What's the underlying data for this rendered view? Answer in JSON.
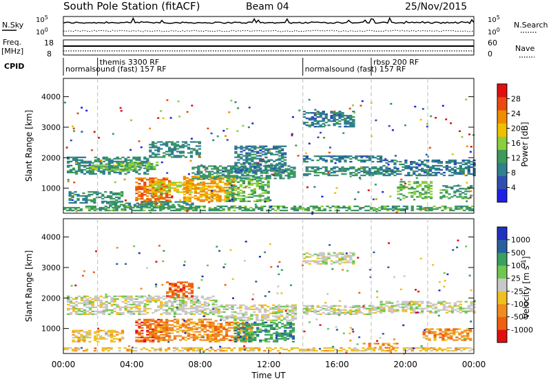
{
  "header": {
    "title": "South Pole Station (fitACF)",
    "beam": "Beam 04",
    "date": "25/Nov/2015"
  },
  "summary": {
    "nsky_label": "N.Sky",
    "nsky_top": "10^5",
    "nsky_bottom": "10^0",
    "nsearch_top": "10^5",
    "nsearch_bottom": "10^0",
    "nsearch_label": "N.Search",
    "freq_label_1": "Freq.",
    "freq_label_2": "[MHz]",
    "freq_top": "18",
    "freq_bottom": "8",
    "nave_top": "60",
    "nave_bottom": "0",
    "nave_label": "Nave",
    "cpid_label": "CPID",
    "cpid_entries": [
      {
        "text": "themis 3300 RF",
        "start_hour": 2.0
      },
      {
        "text": "normalsound (fast) 157 RF",
        "start_hour": 0.0
      },
      {
        "text": "normalsound (fast) 157 RF",
        "start_hour": 14.0
      },
      {
        "text": "rbsp 200 RF",
        "start_hour": 18.0
      }
    ]
  },
  "colors": {
    "power_scale": [
      "#1f1fe6",
      "#2f4fb0",
      "#2f7f8f",
      "#3c9a5a",
      "#8ccf3c",
      "#f0c000",
      "#f08c00",
      "#e84a10",
      "#e01010"
    ],
    "velocity_scale": [
      "#2030c0",
      "#2860a0",
      "#38a060",
      "#70c850",
      "#c8c8c8",
      "#f0c020",
      "#f08c20",
      "#f06010",
      "#e01010"
    ]
  },
  "chart_data": [
    {
      "type": "heatmap",
      "panel": "power",
      "ylabel": "Slant Range [km]",
      "yticks": [
        "4000",
        "3000",
        "2000",
        "1000"
      ],
      "ylim": [
        180,
        4600
      ],
      "xlim": [
        0,
        24
      ],
      "colorbar_label": "Power [dB]",
      "colorbar_ticks": [
        "28",
        "24",
        "20",
        "16",
        "12",
        "8",
        "4"
      ],
      "colorbar_range": [
        0,
        32
      ],
      "regions": [
        {
          "x": [
            0.2,
            5.0
          ],
          "y": [
            1450,
            2000
          ],
          "value": 9
        },
        {
          "x": [
            1.5,
            3.8
          ],
          "y": [
            1550,
            1750
          ],
          "value": 16
        },
        {
          "x": [
            3.0,
            5.5
          ],
          "y": [
            1600,
            1850
          ],
          "value": 14
        },
        {
          "x": [
            0.3,
            3.5
          ],
          "y": [
            500,
            900
          ],
          "value": 10
        },
        {
          "x": [
            4.2,
            6.2
          ],
          "y": [
            450,
            1350
          ],
          "value": 26
        },
        {
          "x": [
            5.0,
            7.5
          ],
          "y": [
            850,
            1250
          ],
          "value": 18
        },
        {
          "x": [
            7.0,
            10.0
          ],
          "y": [
            550,
            1400
          ],
          "value": 23
        },
        {
          "x": [
            9.5,
            12.0
          ],
          "y": [
            550,
            1350
          ],
          "value": 14
        },
        {
          "x": [
            7.5,
            13.5
          ],
          "y": [
            1300,
            1750
          ],
          "value": 11
        },
        {
          "x": [
            5.0,
            8.0
          ],
          "y": [
            2000,
            2500
          ],
          "value": 9
        },
        {
          "x": [
            10.0,
            13.0
          ],
          "y": [
            1500,
            2400
          ],
          "value": 8
        },
        {
          "x": [
            14.0,
            18.5
          ],
          "y": [
            1400,
            1700
          ],
          "value": 10
        },
        {
          "x": [
            14.0,
            18.5
          ],
          "y": [
            1850,
            2050
          ],
          "value": 8
        },
        {
          "x": [
            14.0,
            17.0
          ],
          "y": [
            3000,
            3500
          ],
          "value": 8
        },
        {
          "x": [
            18.5,
            24.0
          ],
          "y": [
            1400,
            1900
          ],
          "value": 8
        },
        {
          "x": [
            19.5,
            21.5
          ],
          "y": [
            650,
            1200
          ],
          "value": 14
        },
        {
          "x": [
            22.0,
            23.8
          ],
          "y": [
            650,
            1100
          ],
          "value": 12
        },
        {
          "x": [
            2.5,
            7.5
          ],
          "y": [
            350,
            550
          ],
          "value": 10
        },
        {
          "x": [
            0.0,
            24.0
          ],
          "y": [
            250,
            400
          ],
          "value": 12
        }
      ]
    },
    {
      "type": "heatmap",
      "panel": "velocity",
      "ylabel": "Slant Range [km]",
      "xlabel": "Time UT",
      "xticks": [
        "00:00",
        "04:00",
        "08:00",
        "12:00",
        "16:00",
        "20:00",
        "00:00"
      ],
      "yticks": [
        "4000",
        "3000",
        "2000",
        "1000"
      ],
      "ylim": [
        180,
        4600
      ],
      "xlim": [
        0,
        24
      ],
      "colorbar_label": "Velocity [m s^-1]",
      "colorbar_ticks": [
        "1000",
        "500",
        "100",
        "25",
        "-25",
        "-100",
        "-500",
        "-1000"
      ],
      "regions": [
        {
          "x": [
            0.2,
            9.0
          ],
          "y": [
            1450,
            2050
          ],
          "value": 4
        },
        {
          "x": [
            9.0,
            13.5
          ],
          "y": [
            1250,
            1750
          ],
          "value": 4
        },
        {
          "x": [
            0.5,
            3.5
          ],
          "y": [
            550,
            950
          ],
          "value": 5
        },
        {
          "x": [
            4.2,
            6.0
          ],
          "y": [
            550,
            1300
          ],
          "value": 7
        },
        {
          "x": [
            5.0,
            9.0
          ],
          "y": [
            600,
            1300
          ],
          "value": 6
        },
        {
          "x": [
            8.5,
            11.0
          ],
          "y": [
            550,
            1200
          ],
          "value": 6
        },
        {
          "x": [
            10.0,
            13.5
          ],
          "y": [
            550,
            1200
          ],
          "value": 2
        },
        {
          "x": [
            6.0,
            7.5
          ],
          "y": [
            2000,
            2500
          ],
          "value": 7
        },
        {
          "x": [
            14.0,
            18.5
          ],
          "y": [
            1450,
            1750
          ],
          "value": 4
        },
        {
          "x": [
            14.0,
            17.0
          ],
          "y": [
            3100,
            3500
          ],
          "value": 4
        },
        {
          "x": [
            18.5,
            24.0
          ],
          "y": [
            1500,
            1900
          ],
          "value": 4
        },
        {
          "x": [
            21.0,
            23.8
          ],
          "y": [
            600,
            1000
          ],
          "value": 6
        },
        {
          "x": [
            17.5,
            19.5
          ],
          "y": [
            350,
            500
          ],
          "value": 6
        },
        {
          "x": [
            0.0,
            24.0
          ],
          "y": [
            250,
            380
          ],
          "value": 5
        }
      ]
    }
  ]
}
